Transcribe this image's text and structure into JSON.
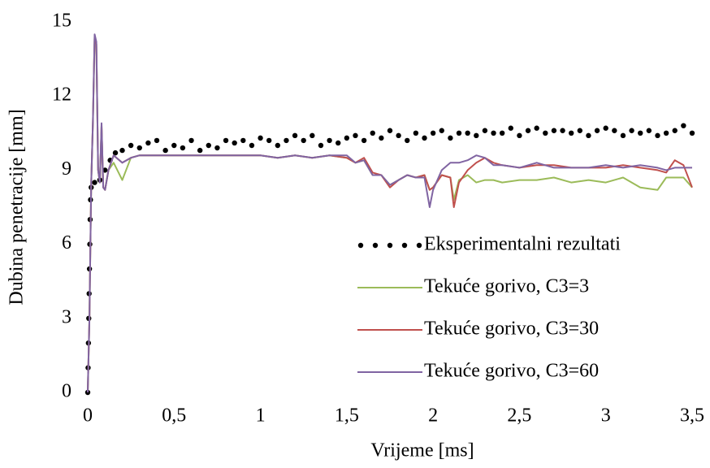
{
  "chart_data": {
    "type": "line",
    "x_label": "Vrijeme [ms]",
    "y_label": "Dubina penetracije [mm]",
    "xlim": [
      0,
      3.5
    ],
    "ylim": [
      0,
      15
    ],
    "xticks": [
      0,
      {
        "value": 0.5,
        "label": "0,5"
      },
      1,
      {
        "value": 1.5,
        "label": "1,5"
      },
      2,
      {
        "value": 2.5,
        "label": "2,5"
      },
      3,
      {
        "value": 3.5,
        "label": "3,5"
      }
    ],
    "yticks": [
      0,
      3,
      6,
      9,
      12,
      15
    ],
    "grid": false,
    "legend": "right",
    "x": [
      0,
      0.01,
      0.02,
      0.03,
      0.04,
      0.05,
      0.06,
      0.07,
      0.08,
      0.09,
      0.1,
      0.12,
      0.15,
      0.2,
      0.25,
      0.3,
      0.4,
      0.5,
      0.6,
      0.7,
      0.8,
      0.9,
      1.0,
      1.1,
      1.2,
      1.3,
      1.4,
      1.5,
      1.55,
      1.6,
      1.65,
      1.7,
      1.75,
      1.8,
      1.85,
      1.9,
      1.95,
      1.98,
      2.0,
      2.05,
      2.1,
      2.12,
      2.15,
      2.2,
      2.25,
      2.3,
      2.35,
      2.4,
      2.5,
      2.6,
      2.7,
      2.8,
      2.9,
      3.0,
      3.1,
      3.2,
      3.3,
      3.35,
      3.4,
      3.45,
      3.5
    ],
    "series": [
      {
        "name": "Eksperimentalni rezultati",
        "color": "#000000",
        "marker": "dot",
        "line": false,
        "x": [
          0,
          0.002,
          0.004,
          0.006,
          0.008,
          0.01,
          0.012,
          0.014,
          0.016,
          0.02,
          0.04,
          0.07,
          0.1,
          0.13,
          0.16,
          0.2,
          0.25,
          0.3,
          0.35,
          0.4,
          0.45,
          0.5,
          0.55,
          0.6,
          0.65,
          0.7,
          0.75,
          0.8,
          0.85,
          0.9,
          0.95,
          1.0,
          1.05,
          1.1,
          1.15,
          1.2,
          1.25,
          1.3,
          1.35,
          1.4,
          1.45,
          1.5,
          1.55,
          1.6,
          1.65,
          1.7,
          1.75,
          1.8,
          1.85,
          1.9,
          1.95,
          2.0,
          2.05,
          2.1,
          2.15,
          2.2,
          2.25,
          2.3,
          2.35,
          2.4,
          2.45,
          2.5,
          2.55,
          2.6,
          2.65,
          2.7,
          2.75,
          2.8,
          2.85,
          2.9,
          2.95,
          3.0,
          3.05,
          3.1,
          3.15,
          3.2,
          3.25,
          3.3,
          3.35,
          3.4,
          3.45,
          3.5
        ],
        "values": [
          0,
          1,
          2,
          3,
          4,
          5,
          6,
          7,
          7.8,
          8.3,
          8.5,
          8.6,
          9.0,
          9.4,
          9.7,
          9.8,
          10.0,
          9.9,
          10.1,
          10.2,
          9.8,
          10.0,
          9.9,
          10.2,
          9.8,
          10.0,
          9.9,
          10.2,
          10.1,
          10.2,
          10.0,
          10.3,
          10.2,
          10.0,
          10.2,
          10.4,
          10.2,
          10.4,
          10.0,
          10.2,
          10.1,
          10.3,
          10.4,
          10.2,
          10.5,
          10.3,
          10.6,
          10.4,
          10.2,
          10.5,
          10.3,
          10.5,
          10.6,
          10.3,
          10.5,
          10.5,
          10.4,
          10.6,
          10.5,
          10.5,
          10.7,
          10.4,
          10.6,
          10.7,
          10.5,
          10.6,
          10.6,
          10.5,
          10.6,
          10.4,
          10.6,
          10.7,
          10.6,
          10.4,
          10.6,
          10.5,
          10.6,
          10.4,
          10.5,
          10.6,
          10.8,
          10.5
        ]
      },
      {
        "name": "Tekuće gorivo, C3=3",
        "color": "#9bbb59",
        "marker": "none",
        "line": true,
        "values": [
          0,
          3,
          8.5,
          11,
          14.4,
          14.1,
          9,
          8.5,
          10.8,
          8.3,
          8.2,
          9,
          9.3,
          8.6,
          9.5,
          9.6,
          9.6,
          9.6,
          9.6,
          9.6,
          9.6,
          9.6,
          9.6,
          9.5,
          9.6,
          9.5,
          9.6,
          9.5,
          9.3,
          9.4,
          8.8,
          8.8,
          8.4,
          8.6,
          8.8,
          8.7,
          8.8,
          8.2,
          8.3,
          8.8,
          8.7,
          7.8,
          8.6,
          8.8,
          8.5,
          8.6,
          8.6,
          8.5,
          8.6,
          8.6,
          8.7,
          8.5,
          8.6,
          8.5,
          8.7,
          8.3,
          8.2,
          8.7,
          8.7,
          8.7,
          8.3
        ]
      },
      {
        "name": "Tekuće gorivo, C3=30",
        "color": "#c0504d",
        "marker": "none",
        "line": true,
        "values": [
          0,
          3,
          8.5,
          11,
          14.4,
          14.1,
          9,
          8.5,
          10.8,
          8.3,
          8.2,
          9,
          9.6,
          9.3,
          9.5,
          9.6,
          9.6,
          9.6,
          9.6,
          9.6,
          9.6,
          9.6,
          9.6,
          9.5,
          9.6,
          9.5,
          9.6,
          9.5,
          9.3,
          9.5,
          8.9,
          8.8,
          8.3,
          8.6,
          8.8,
          8.7,
          8.8,
          8.2,
          8.3,
          8.8,
          8.7,
          7.5,
          8.5,
          9.0,
          9.3,
          9.5,
          9.3,
          9.2,
          9.1,
          9.2,
          9.2,
          9.1,
          9.1,
          9.1,
          9.2,
          9.1,
          9.0,
          8.9,
          9.4,
          9.2,
          8.3
        ]
      },
      {
        "name": "Tekuće gorivo, C3=60",
        "color": "#8064a2",
        "marker": "none",
        "line": true,
        "values": [
          0,
          3,
          8.5,
          11,
          14.5,
          14.2,
          9,
          8.5,
          10.9,
          8.3,
          8.2,
          9,
          9.6,
          9.3,
          9.5,
          9.6,
          9.6,
          9.6,
          9.6,
          9.6,
          9.6,
          9.6,
          9.6,
          9.5,
          9.6,
          9.5,
          9.6,
          9.6,
          9.3,
          9.4,
          8.8,
          8.8,
          8.4,
          8.6,
          8.8,
          8.7,
          8.7,
          7.5,
          8.2,
          9.0,
          9.3,
          9.3,
          9.3,
          9.4,
          9.6,
          9.5,
          9.2,
          9.2,
          9.1,
          9.3,
          9.1,
          9.1,
          9.1,
          9.2,
          9.1,
          9.2,
          9.1,
          9.0,
          9.1,
          9.1,
          9.1
        ]
      }
    ]
  }
}
